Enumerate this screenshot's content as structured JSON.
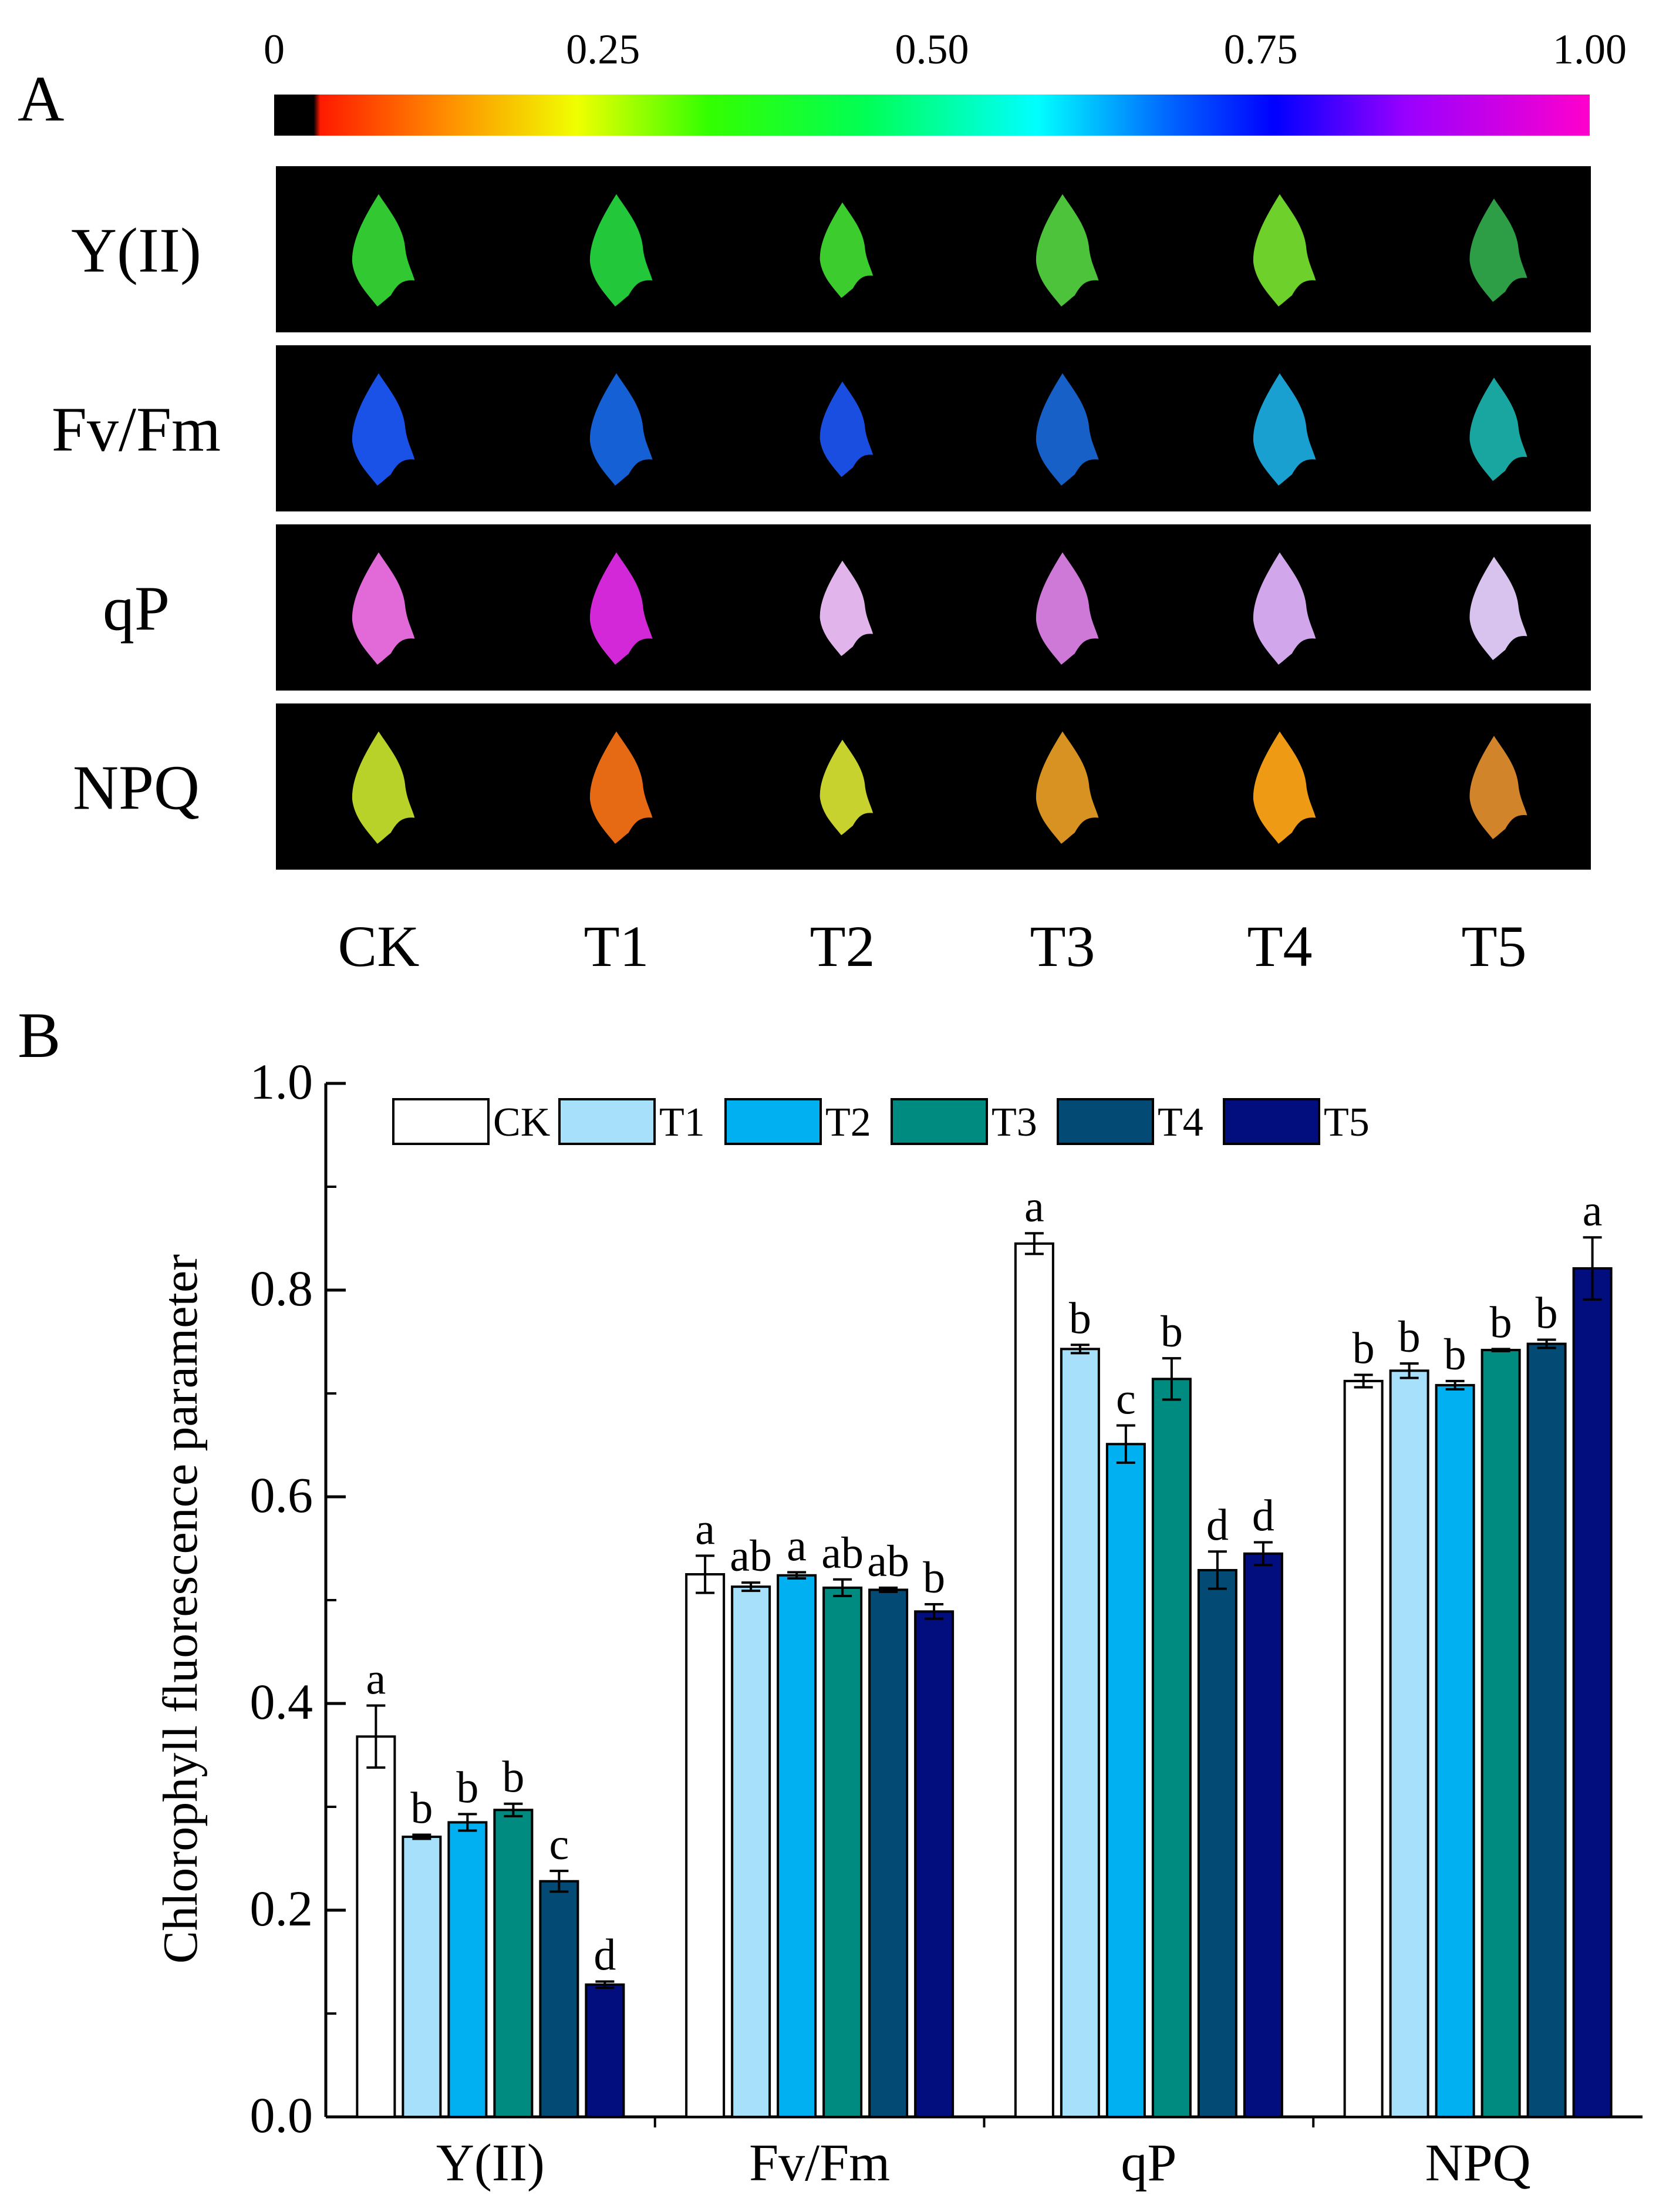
{
  "panel_a": {
    "label": "A",
    "colorbar": {
      "ticks": [
        "0",
        "0.25",
        "0.50",
        "0.75",
        "1.00"
      ],
      "tick_values": [
        0,
        0.25,
        0.5,
        0.75,
        1.0
      ],
      "stops": [
        {
          "v": 0.0,
          "color": "#000000"
        },
        {
          "v": 0.03,
          "color": "#000000"
        },
        {
          "v": 0.035,
          "color": "#ff1a00"
        },
        {
          "v": 0.13,
          "color": "#ff8c00"
        },
        {
          "v": 0.23,
          "color": "#f0ff00"
        },
        {
          "v": 0.33,
          "color": "#33ff00"
        },
        {
          "v": 0.45,
          "color": "#00ff55"
        },
        {
          "v": 0.58,
          "color": "#00ffff"
        },
        {
          "v": 0.68,
          "color": "#0066ff"
        },
        {
          "v": 0.76,
          "color": "#0000ff"
        },
        {
          "v": 0.86,
          "color": "#9900ff"
        },
        {
          "v": 1.0,
          "color": "#ff00cc"
        }
      ]
    },
    "rows": [
      {
        "label": "Y(II)",
        "colors": [
          "#32c832",
          "#22c83a",
          "#3ccc2e",
          "#4cc33a",
          "#6ed02a",
          "#2e9e46"
        ]
      },
      {
        "label": "Fv/Fm",
        "colors": [
          "#1a52e8",
          "#1660d6",
          "#1a4ee0",
          "#1660c8",
          "#1aa0d0",
          "#1aa6a0"
        ]
      },
      {
        "label": "qP",
        "colors": [
          "#e26ad8",
          "#d228d8",
          "#e2b4ec",
          "#ce78d8",
          "#d2a6ea",
          "#d8c2ee"
        ]
      },
      {
        "label": "NPQ",
        "colors": [
          "#b8d22a",
          "#e66a14",
          "#c8d22e",
          "#d89222",
          "#ee9a14",
          "#d2842a"
        ]
      }
    ],
    "columns": [
      "CK",
      "T1",
      "T2",
      "T3",
      "T4",
      "T5"
    ]
  },
  "panel_b": {
    "label": "B"
  },
  "chart_data": {
    "type": "bar",
    "title": "",
    "xlabel": "",
    "ylabel": "Chlorophyll fluorescence parameter",
    "ylim": [
      0.0,
      1.0
    ],
    "yticks": [
      "0.0",
      "0.2",
      "0.4",
      "0.6",
      "0.8",
      "1.0"
    ],
    "ytick_values": [
      0.0,
      0.2,
      0.4,
      0.6,
      0.8,
      1.0
    ],
    "categories": [
      "Y(II)",
      "Fv/Fm",
      "qP",
      "NPQ"
    ],
    "legend_position": "top",
    "series": [
      {
        "name": "CK",
        "color": "#ffffff",
        "values": [
          0.368,
          0.525,
          0.845,
          0.712
        ],
        "errors": [
          0.03,
          0.018,
          0.01,
          0.006
        ],
        "letters": [
          "a",
          "a",
          "a",
          "b"
        ]
      },
      {
        "name": "T1",
        "color": "#a6e0fa",
        "values": [
          0.271,
          0.513,
          0.743,
          0.722
        ],
        "errors": [
          0.002,
          0.004,
          0.004,
          0.007
        ],
        "letters": [
          "b",
          "ab",
          "b",
          "b"
        ]
      },
      {
        "name": "T2",
        "color": "#00b0f0",
        "values": [
          0.285,
          0.524,
          0.651,
          0.708
        ],
        "errors": [
          0.008,
          0.003,
          0.018,
          0.004
        ],
        "letters": [
          "b",
          "a",
          "c",
          "b"
        ]
      },
      {
        "name": "T3",
        "color": "#008b80",
        "values": [
          0.297,
          0.512,
          0.714,
          0.742
        ],
        "errors": [
          0.006,
          0.008,
          0.02,
          0.001
        ],
        "letters": [
          "b",
          "ab",
          "b",
          "b"
        ]
      },
      {
        "name": "T4",
        "color": "#034a74",
        "values": [
          0.228,
          0.51,
          0.529,
          0.748
        ],
        "errors": [
          0.01,
          0.002,
          0.018,
          0.004
        ],
        "letters": [
          "c",
          "ab",
          "d",
          "b"
        ]
      },
      {
        "name": "T5",
        "color": "#020d7e",
        "values": [
          0.128,
          0.489,
          0.545,
          0.821
        ],
        "errors": [
          0.003,
          0.007,
          0.011,
          0.03
        ],
        "letters": [
          "d",
          "b",
          "d",
          "a"
        ]
      }
    ]
  }
}
